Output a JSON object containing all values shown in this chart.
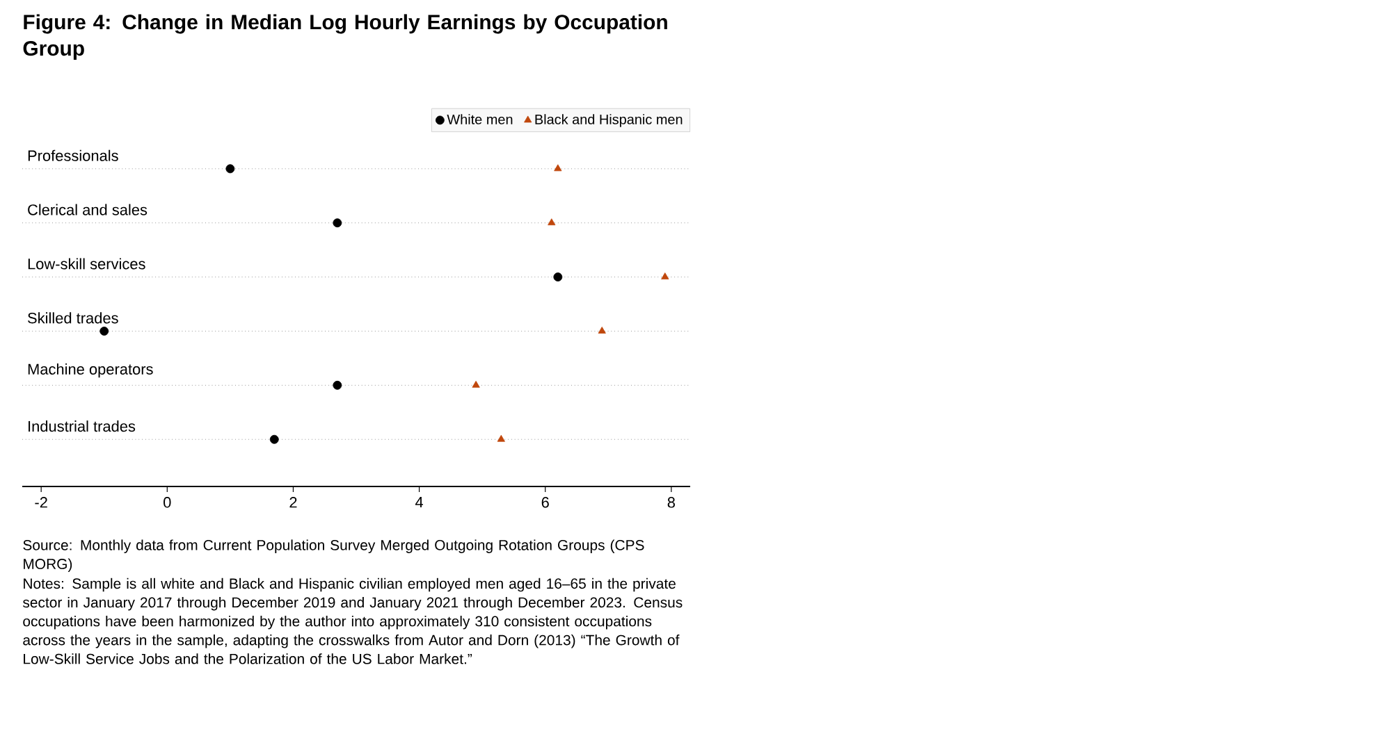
{
  "chart_data": {
    "type": "scatter",
    "title": "Figure 4: Change in Median Log Hourly Earnings by Occupation Group",
    "categories": [
      "Professionals",
      "Clerical and sales",
      "Low-skill services",
      "Skilled trades",
      "Machine operators",
      "Industrial trades"
    ],
    "orientation": "horizontal",
    "series": [
      {
        "name": "White men",
        "color": "#000000",
        "marker": "circle",
        "values": [
          1.0,
          2.7,
          6.2,
          -1.0,
          2.7,
          1.7
        ]
      },
      {
        "name": "Black and Hispanic men",
        "color": "#c0470c",
        "marker": "triangle",
        "values": [
          6.2,
          6.1,
          7.9,
          6.9,
          4.9,
          5.3
        ]
      }
    ],
    "xlim": [
      -2.3,
      8.3
    ],
    "xticks": [
      -2,
      0,
      2,
      4,
      6,
      8
    ],
    "grid": "y",
    "legend": "top right",
    "annotations": [
      "Source: Monthly data from Current Population Survey Merged Outgoing Rotation Groups (CPS MORG)",
      "Notes: Sample is all white and Black and Hispanic civilian employed men aged 16–65 in the private sector in January 2017 through December 2019 and January 2021 through December 2023. Census occupations have been harmonized by the author into approximately 310 consistent occupations across the years in the sample, adapting the crosswalks from Autor and Dorn (2013) “The Growth of Low-Skill Service Jobs and the Polarization of the US Labor Market.”"
    ]
  }
}
